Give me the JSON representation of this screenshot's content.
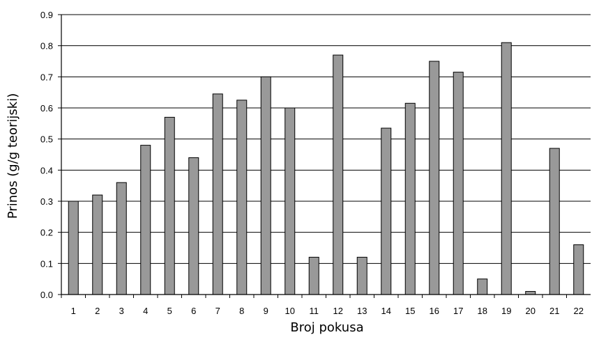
{
  "chart_data": {
    "type": "bar",
    "title": "",
    "xlabel": "Broj pokusa",
    "ylabel": "Prinos (g/g teorijski)",
    "categories": [
      "1",
      "2",
      "3",
      "4",
      "5",
      "6",
      "7",
      "8",
      "9",
      "10",
      "11",
      "12",
      "13",
      "14",
      "15",
      "16",
      "17",
      "18",
      "19",
      "20",
      "21",
      "22"
    ],
    "values": [
      0.3,
      0.32,
      0.36,
      0.48,
      0.57,
      0.44,
      0.645,
      0.625,
      0.7,
      0.6,
      0.12,
      0.77,
      0.12,
      0.535,
      0.615,
      0.75,
      0.715,
      0.05,
      0.81,
      0.01,
      0.47,
      0.16
    ],
    "ylim": [
      0,
      0.9
    ],
    "yticks": [
      "0.0",
      "0.1",
      "0.2",
      "0.3",
      "0.4",
      "0.5",
      "0.6",
      "0.7",
      "0.8",
      "0.9"
    ],
    "grid": true,
    "legend": "none",
    "colors": {
      "bar_fill": "#999999",
      "bar_stroke": "#000000",
      "grid": "#000000"
    }
  }
}
